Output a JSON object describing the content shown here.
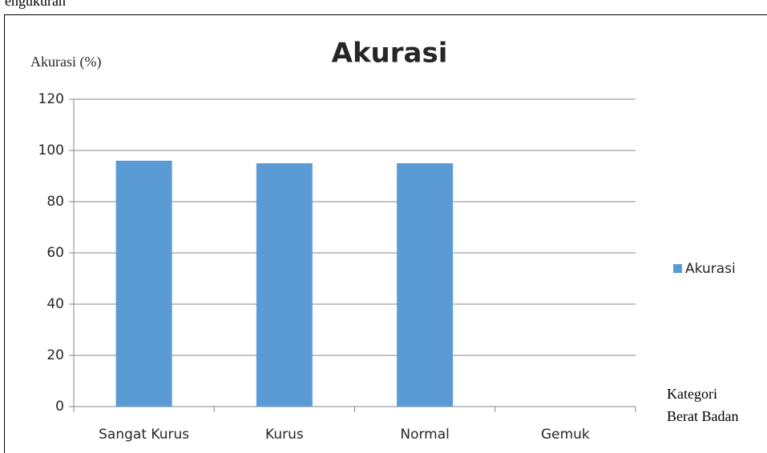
{
  "page_caption": "engukuran",
  "chart_data": {
    "type": "bar",
    "title": "Akurasi",
    "y_label": "Akurasi (%)",
    "x_label": "Kategori Berat Badan",
    "categories": [
      "Sangat Kurus",
      "Kurus",
      "Normal",
      "Gemuk"
    ],
    "series": [
      {
        "name": "Akurasi",
        "color": "#5b9bd5",
        "values": [
          96,
          95,
          95,
          0
        ]
      }
    ],
    "ylim": [
      0,
      120
    ],
    "yticks": [
      0,
      20,
      40,
      60,
      80,
      100,
      120
    ],
    "grid": true,
    "legend": "right"
  }
}
